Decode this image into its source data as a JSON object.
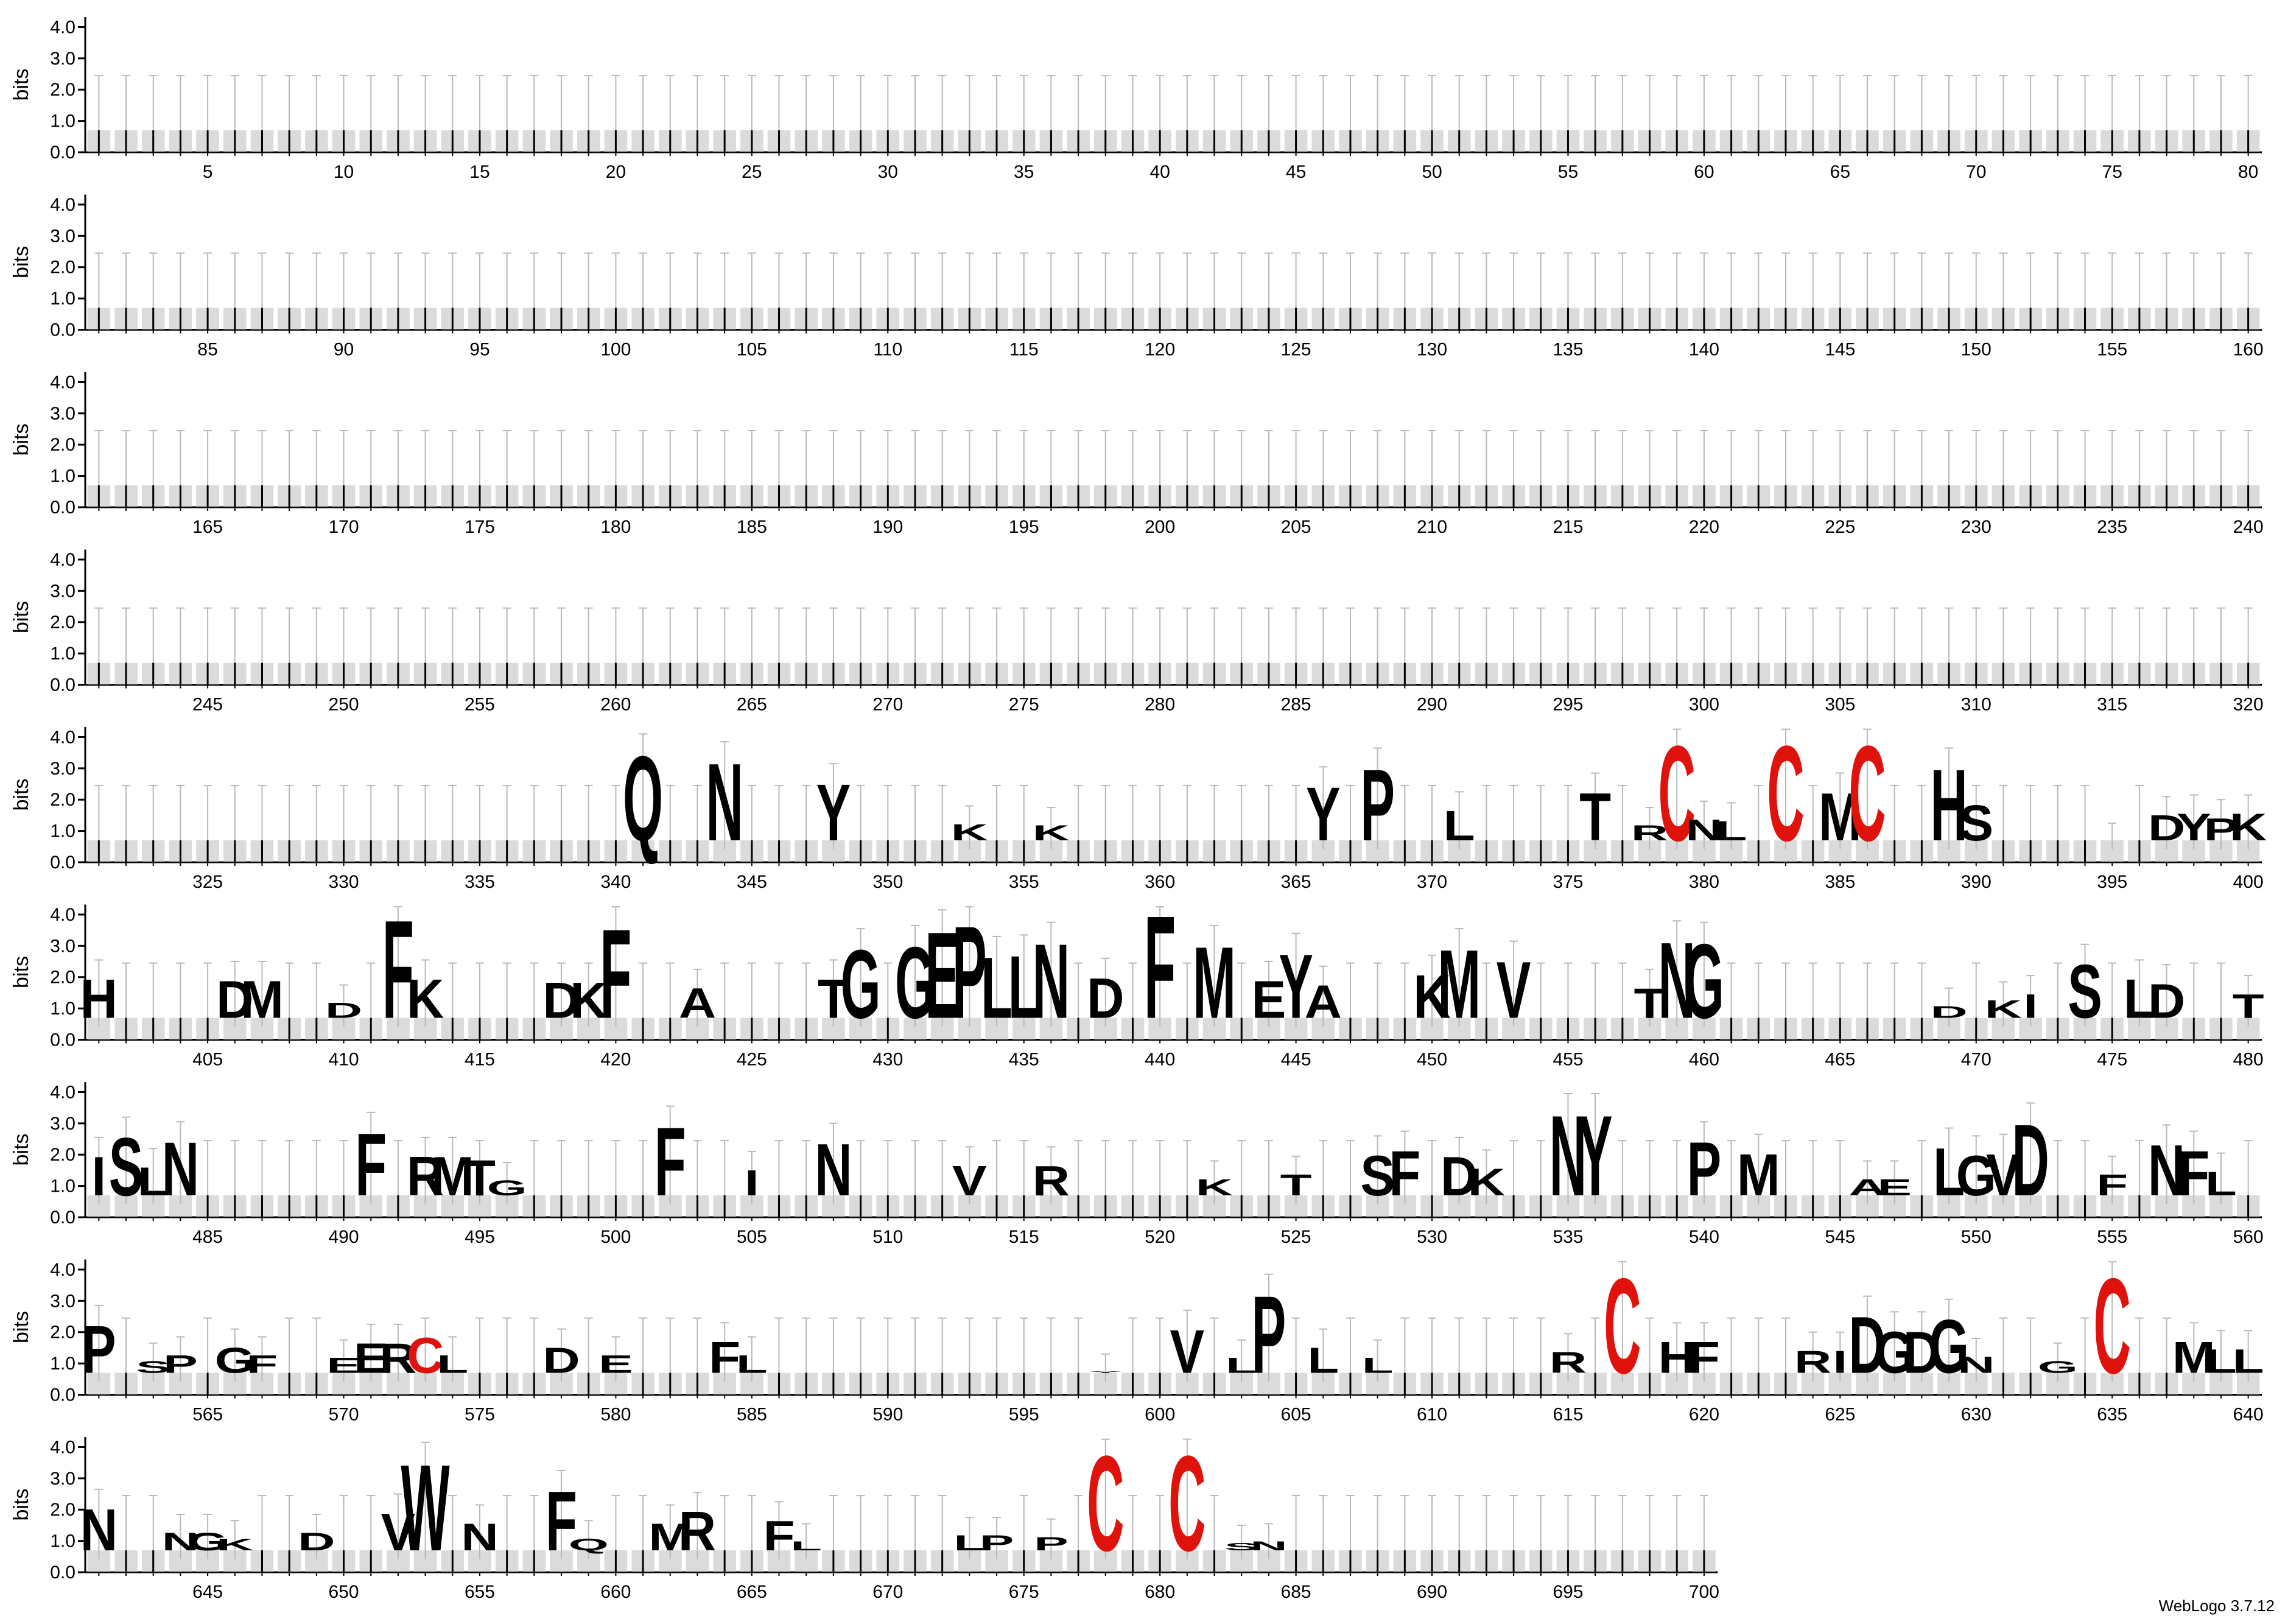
{
  "chart_data": {
    "type": "sequence-logo",
    "ylabel": "bits",
    "ylim": [
      0,
      4.32
    ],
    "ytick_labels": [
      "0.0",
      "1.0",
      "2.0",
      "3.0",
      "4.0"
    ],
    "ytick_values": [
      0,
      1,
      2,
      3,
      4
    ],
    "positions_per_row": 80,
    "total_positions": 700,
    "xtick_step": 5,
    "colors": {
      "default": "#000000",
      "cysteine": "#e0120c",
      "error_bar": "#b8b8b8",
      "background_stack": "#bdbdbd"
    },
    "baseline_height_bits": 0.7,
    "error_bar_top_bits": 2.45,
    "background_residues_note_hidden": true,
    "highlight_glyphs": [
      {
        "pos": 341,
        "letter": "Q",
        "bits": 3.55
      },
      {
        "pos": 344,
        "letter": "N",
        "bits": 3.3
      },
      {
        "pos": 348,
        "letter": "Y",
        "bits": 2.6
      },
      {
        "pos": 353,
        "letter": "K",
        "bits": 1.25
      },
      {
        "pos": 356,
        "letter": "K",
        "bits": 1.2
      },
      {
        "pos": 366,
        "letter": "Y",
        "bits": 2.5
      },
      {
        "pos": 368,
        "letter": "P",
        "bits": 3.1
      },
      {
        "pos": 371,
        "letter": "L",
        "bits": 1.7
      },
      {
        "pos": 376,
        "letter": "T",
        "bits": 2.3
      },
      {
        "pos": 378,
        "letter": "R",
        "bits": 1.2
      },
      {
        "pos": 379,
        "letter": "C",
        "bits": 3.9
      },
      {
        "pos": 380,
        "letter": "N",
        "bits": 1.4
      },
      {
        "pos": 381,
        "letter": "L",
        "bits": 1.35
      },
      {
        "pos": 383,
        "letter": "C",
        "bits": 3.9
      },
      {
        "pos": 385,
        "letter": "M",
        "bits": 2.3
      },
      {
        "pos": 386,
        "letter": "C",
        "bits": 3.9
      },
      {
        "pos": 389,
        "letter": "H",
        "bits": 3.1
      },
      {
        "pos": 390,
        "letter": "S",
        "bits": 1.9
      },
      {
        "pos": 395,
        "letter": "P",
        "bits": 0.7
      },
      {
        "pos": 397,
        "letter": "D",
        "bits": 1.55
      },
      {
        "pos": 398,
        "letter": "Y",
        "bits": 1.6
      },
      {
        "pos": 399,
        "letter": "P",
        "bits": 1.45
      },
      {
        "pos": 400,
        "letter": "K",
        "bits": 1.6
      },
      {
        "pos": 401,
        "letter": "H",
        "bits": 2.0
      },
      {
        "pos": 406,
        "letter": "D",
        "bits": 1.95
      },
      {
        "pos": 407,
        "letter": "M",
        "bits": 1.95
      },
      {
        "pos": 410,
        "letter": "D",
        "bits": 1.2
      },
      {
        "pos": 412,
        "letter": "F",
        "bits": 4.0
      },
      {
        "pos": 413,
        "letter": "K",
        "bits": 2.0
      },
      {
        "pos": 418,
        "letter": "D",
        "bits": 1.9
      },
      {
        "pos": 419,
        "letter": "K",
        "bits": 1.9
      },
      {
        "pos": 420,
        "letter": "F",
        "bits": 3.7
      },
      {
        "pos": 423,
        "letter": "A",
        "bits": 1.7
      },
      {
        "pos": 428,
        "letter": "T",
        "bits": 2.0
      },
      {
        "pos": 429,
        "letter": "G",
        "bits": 3.0
      },
      {
        "pos": 431,
        "letter": "G",
        "bits": 3.1
      },
      {
        "pos": 432,
        "letter": "E",
        "bits": 3.6
      },
      {
        "pos": 433,
        "letter": "P",
        "bits": 3.8
      },
      {
        "pos": 434,
        "letter": "L",
        "bits": 2.75
      },
      {
        "pos": 435,
        "letter": "L",
        "bits": 2.8
      },
      {
        "pos": 436,
        "letter": "N",
        "bits": 3.2
      },
      {
        "pos": 438,
        "letter": "D",
        "bits": 2.05
      },
      {
        "pos": 440,
        "letter": "F",
        "bits": 4.15
      },
      {
        "pos": 442,
        "letter": "M",
        "bits": 3.1
      },
      {
        "pos": 444,
        "letter": "E",
        "bits": 1.95
      },
      {
        "pos": 445,
        "letter": "Y",
        "bits": 2.85
      },
      {
        "pos": 446,
        "letter": "A",
        "bits": 1.8
      },
      {
        "pos": 450,
        "letter": "K",
        "bits": 2.15
      },
      {
        "pos": 451,
        "letter": "M",
        "bits": 3.0
      },
      {
        "pos": 453,
        "letter": "V",
        "bits": 2.6
      },
      {
        "pos": 458,
        "letter": "T",
        "bits": 1.7
      },
      {
        "pos": 459,
        "letter": "N",
        "bits": 3.25
      },
      {
        "pos": 460,
        "letter": "G",
        "bits": 3.2
      },
      {
        "pos": 469,
        "letter": "D",
        "bits": 1.1
      },
      {
        "pos": 471,
        "letter": "K",
        "bits": 1.3
      },
      {
        "pos": 472,
        "letter": "I",
        "bits": 1.5
      },
      {
        "pos": 474,
        "letter": "S",
        "bits": 2.5
      },
      {
        "pos": 476,
        "letter": "L",
        "bits": 2.0
      },
      {
        "pos": 477,
        "letter": "D",
        "bits": 1.85
      },
      {
        "pos": 480,
        "letter": "T",
        "bits": 1.5
      },
      {
        "pos": 481,
        "letter": "I",
        "bits": 2.0
      },
      {
        "pos": 482,
        "letter": "S",
        "bits": 2.65
      },
      {
        "pos": 483,
        "letter": "L",
        "bits": 1.65
      },
      {
        "pos": 484,
        "letter": "N",
        "bits": 2.5
      },
      {
        "pos": 491,
        "letter": "F",
        "bits": 2.8
      },
      {
        "pos": 493,
        "letter": "R",
        "bits": 2.0
      },
      {
        "pos": 494,
        "letter": "M",
        "bits": 2.0
      },
      {
        "pos": 495,
        "letter": "T",
        "bits": 1.9
      },
      {
        "pos": 496,
        "letter": "G",
        "bits": 1.2
      },
      {
        "pos": 502,
        "letter": "F",
        "bits": 3.0
      },
      {
        "pos": 505,
        "letter": "I",
        "bits": 1.55
      },
      {
        "pos": 508,
        "letter": "N",
        "bits": 2.45
      },
      {
        "pos": 513,
        "letter": "V",
        "bits": 1.7
      },
      {
        "pos": 516,
        "letter": "R",
        "bits": 1.7
      },
      {
        "pos": 522,
        "letter": "K",
        "bits": 1.25
      },
      {
        "pos": 525,
        "letter": "T",
        "bits": 1.4
      },
      {
        "pos": 528,
        "letter": "S",
        "bits": 2.05
      },
      {
        "pos": 529,
        "letter": "F",
        "bits": 2.2
      },
      {
        "pos": 531,
        "letter": "D",
        "bits": 2.0
      },
      {
        "pos": 532,
        "letter": "K",
        "bits": 1.6
      },
      {
        "pos": 535,
        "letter": "N",
        "bits": 3.4
      },
      {
        "pos": 536,
        "letter": "Y",
        "bits": 3.4
      },
      {
        "pos": 540,
        "letter": "P",
        "bits": 2.5
      },
      {
        "pos": 542,
        "letter": "M",
        "bits": 2.1
      },
      {
        "pos": 546,
        "letter": "A",
        "bits": 1.25
      },
      {
        "pos": 547,
        "letter": "E",
        "bits": 1.25
      },
      {
        "pos": 549,
        "letter": "L",
        "bits": 2.3
      },
      {
        "pos": 550,
        "letter": "G",
        "bits": 2.05
      },
      {
        "pos": 551,
        "letter": "V",
        "bits": 2.1
      },
      {
        "pos": 552,
        "letter": "D",
        "bits": 3.1
      },
      {
        "pos": 555,
        "letter": "F",
        "bits": 1.4
      },
      {
        "pos": 557,
        "letter": "N",
        "bits": 2.4
      },
      {
        "pos": 558,
        "letter": "F",
        "bits": 2.2
      },
      {
        "pos": 559,
        "letter": "L",
        "bits": 1.5
      },
      {
        "pos": 561,
        "letter": "P",
        "bits": 2.3
      },
      {
        "pos": 563,
        "letter": "S",
        "bits": 1.1
      },
      {
        "pos": 564,
        "letter": "P",
        "bits": 1.3
      },
      {
        "pos": 566,
        "letter": "G",
        "bits": 1.55
      },
      {
        "pos": 567,
        "letter": "F",
        "bits": 1.3
      },
      {
        "pos": 570,
        "letter": "E",
        "bits": 1.2
      },
      {
        "pos": 571,
        "letter": "E",
        "bits": 1.7
      },
      {
        "pos": 572,
        "letter": "R",
        "bits": 1.7
      },
      {
        "pos": 573,
        "letter": "C",
        "bits": 1.9
      },
      {
        "pos": 574,
        "letter": "L",
        "bits": 1.3
      },
      {
        "pos": 578,
        "letter": "D",
        "bits": 1.55
      },
      {
        "pos": 580,
        "letter": "E",
        "bits": 1.3
      },
      {
        "pos": 584,
        "letter": "F",
        "bits": 1.75
      },
      {
        "pos": 585,
        "letter": "L",
        "bits": 1.3
      },
      {
        "pos": 598,
        "letter": "Y",
        "bits": 0.75
      },
      {
        "pos": 601,
        "letter": "V",
        "bits": 2.15
      },
      {
        "pos": 603,
        "letter": "L",
        "bits": 1.2
      },
      {
        "pos": 604,
        "letter": "P",
        "bits": 3.3
      },
      {
        "pos": 606,
        "letter": "L",
        "bits": 1.55
      },
      {
        "pos": 608,
        "letter": "L",
        "bits": 1.2
      },
      {
        "pos": 615,
        "letter": "R",
        "bits": 1.4
      },
      {
        "pos": 617,
        "letter": "C",
        "bits": 3.9
      },
      {
        "pos": 619,
        "letter": "H",
        "bits": 1.75
      },
      {
        "pos": 620,
        "letter": "F",
        "bits": 1.75
      },
      {
        "pos": 624,
        "letter": "R",
        "bits": 1.45
      },
      {
        "pos": 625,
        "letter": "I",
        "bits": 1.45
      },
      {
        "pos": 626,
        "letter": "D",
        "bits": 2.6
      },
      {
        "pos": 627,
        "letter": "G",
        "bits": 2.1
      },
      {
        "pos": 628,
        "letter": "D",
        "bits": 2.1
      },
      {
        "pos": 629,
        "letter": "G",
        "bits": 2.5
      },
      {
        "pos": 630,
        "letter": "N",
        "bits": 1.25
      },
      {
        "pos": 633,
        "letter": "G",
        "bits": 1.1
      },
      {
        "pos": 635,
        "letter": "C",
        "bits": 3.9
      },
      {
        "pos": 638,
        "letter": "M",
        "bits": 1.75
      },
      {
        "pos": 639,
        "letter": "L",
        "bits": 1.5
      },
      {
        "pos": 640,
        "letter": "L",
        "bits": 1.5
      },
      {
        "pos": 641,
        "letter": "N",
        "bits": 2.1
      },
      {
        "pos": 644,
        "letter": "N",
        "bits": 1.3
      },
      {
        "pos": 645,
        "letter": "G",
        "bits": 1.3
      },
      {
        "pos": 646,
        "letter": "K",
        "bits": 1.1
      },
      {
        "pos": 649,
        "letter": "D",
        "bits": 1.3
      },
      {
        "pos": 652,
        "letter": "V",
        "bits": 1.95
      },
      {
        "pos": 653,
        "letter": "W",
        "bits": 3.6
      },
      {
        "pos": 655,
        "letter": "N",
        "bits": 1.6
      },
      {
        "pos": 658,
        "letter": "F",
        "bits": 2.7
      },
      {
        "pos": 659,
        "letter": "Q",
        "bits": 1.1
      },
      {
        "pos": 662,
        "letter": "M",
        "bits": 1.6
      },
      {
        "pos": 663,
        "letter": "R",
        "bits": 2.0
      },
      {
        "pos": 666,
        "letter": "F",
        "bits": 1.7
      },
      {
        "pos": 667,
        "letter": "L",
        "bits": 1.0
      },
      {
        "pos": 673,
        "letter": "L",
        "bits": 1.2
      },
      {
        "pos": 674,
        "letter": "P",
        "bits": 1.2
      },
      {
        "pos": 676,
        "letter": "P",
        "bits": 1.15
      },
      {
        "pos": 678,
        "letter": "C",
        "bits": 3.9
      },
      {
        "pos": 681,
        "letter": "C",
        "bits": 3.9
      },
      {
        "pos": 683,
        "letter": "S",
        "bits": 0.95
      },
      {
        "pos": 684,
        "letter": "N",
        "bits": 1.0
      }
    ]
  },
  "labels": {
    "credit": "WebLogo 3.7.12"
  }
}
